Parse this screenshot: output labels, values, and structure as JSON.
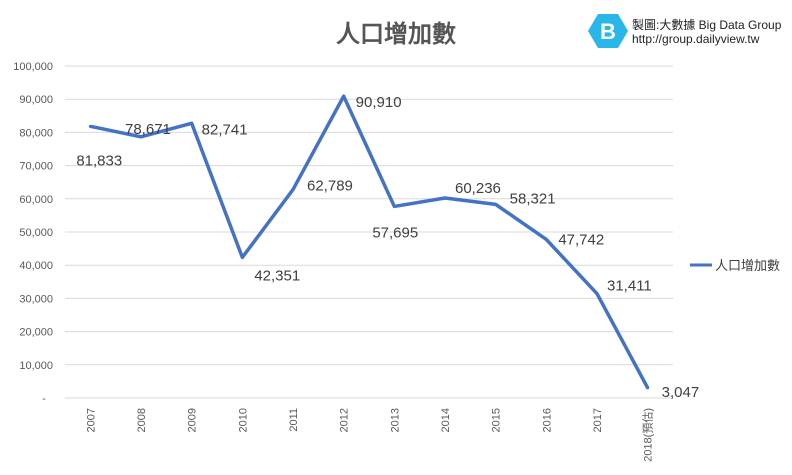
{
  "brand": {
    "line1": "製圖:大數據 Big Data Group",
    "line2": "http://group.dailyview.tw",
    "logo_letter": "B",
    "logo_color": "#29b6e8"
  },
  "chart_data": {
    "type": "line",
    "title": "人口增加數",
    "categories": [
      "2007",
      "2008",
      "2009",
      "2010",
      "2011",
      "2012",
      "2013",
      "2014",
      "2015",
      "2016",
      "2017",
      "2018(預估)"
    ],
    "series": [
      {
        "name": "人口增加數",
        "values": [
          81833,
          78671,
          82741,
          42351,
          62789,
          90910,
          57695,
          60236,
          58321,
          47742,
          31411,
          3047
        ],
        "color": "#4472c4"
      }
    ],
    "data_labels": [
      "81,833",
      "78,671",
      "82,741",
      "42,351",
      "62,789",
      "90,910",
      "57,695",
      "60,236",
      "58,321",
      "47,742",
      "31,411",
      "3,047"
    ],
    "ylim": [
      0,
      100000
    ],
    "yticks": [
      0,
      10000,
      20000,
      30000,
      40000,
      50000,
      60000,
      70000,
      80000,
      90000,
      100000
    ],
    "ytick_labels": [
      "-",
      "10,000",
      "20,000",
      "30,000",
      "40,000",
      "50,000",
      "60,000",
      "70,000",
      "80,000",
      "90,000",
      "100,000"
    ],
    "grid": true,
    "legend": "right",
    "xlabel": "",
    "ylabel": ""
  }
}
